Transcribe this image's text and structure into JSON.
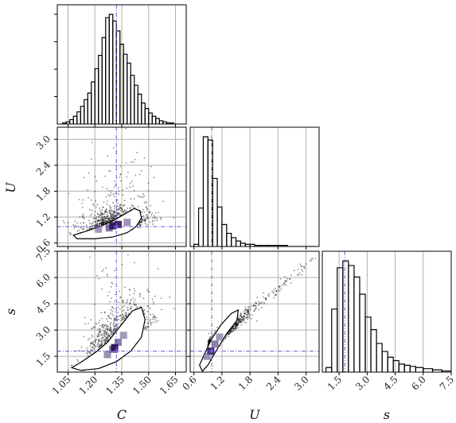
{
  "chart_data": {
    "type": "corner",
    "parameters": [
      "C",
      "U",
      "s"
    ],
    "axis_labels": {
      "C": "C",
      "U": "U",
      "s": "s"
    },
    "grid": true,
    "truth": {
      "C": 1.32,
      "U": 0.98,
      "s": 1.8
    },
    "truth_color": "#6a5acd",
    "ranges": {
      "C": [
        0.99,
        1.71
      ],
      "U": [
        0.52,
        3.28
      ],
      "s": [
        0.6,
        7.5
      ]
    },
    "ticks": {
      "C": [
        1.05,
        1.2,
        1.35,
        1.5,
        1.65
      ],
      "U": [
        0.6,
        1.2,
        1.8,
        2.4,
        3.0
      ],
      "s": [
        1.5,
        3.0,
        4.5,
        6.0,
        7.5
      ]
    },
    "tick_labels": {
      "C": [
        "1.05",
        "1.20",
        "1.35",
        "1.50",
        "1.65"
      ],
      "U": [
        "0.6",
        "1.2",
        "1.8",
        "2.4",
        "3.0"
      ],
      "s": [
        "1.5",
        "3.0",
        "4.5",
        "6.0",
        "7.5"
      ]
    },
    "histograms": {
      "C": {
        "edges": [
          1.02,
          1.04,
          1.06,
          1.08,
          1.1,
          1.12,
          1.14,
          1.16,
          1.18,
          1.2,
          1.22,
          1.24,
          1.26,
          1.28,
          1.3,
          1.32,
          1.34,
          1.36,
          1.38,
          1.4,
          1.42,
          1.44,
          1.46,
          1.48,
          1.5,
          1.52,
          1.54,
          1.56,
          1.58,
          1.6,
          1.62,
          1.64,
          1.66
        ],
        "counts": [
          1,
          2,
          4,
          7,
          11,
          16,
          22,
          28,
          38,
          50,
          62,
          78,
          96,
          99,
          93,
          84,
          72,
          63,
          55,
          44,
          35,
          27,
          19,
          14,
          10,
          7,
          5,
          3,
          2,
          1,
          1,
          0
        ]
      },
      "U": {
        "edges": [
          0.6,
          0.7,
          0.8,
          0.9,
          1.0,
          1.1,
          1.2,
          1.3,
          1.4,
          1.5,
          1.6,
          1.7,
          1.8,
          1.9,
          2.0,
          2.2,
          2.4,
          2.6,
          2.8,
          3.0,
          3.2
        ],
        "counts": [
          2,
          35,
          100,
          97,
          62,
          36,
          20,
          12,
          8,
          5,
          3,
          2,
          2,
          1,
          1,
          1,
          1,
          0,
          0,
          0
        ]
      },
      "s": {
        "edges": [
          0.8,
          1.1,
          1.4,
          1.7,
          2.0,
          2.3,
          2.6,
          2.9,
          3.2,
          3.5,
          3.8,
          4.1,
          4.4,
          4.7,
          5.0,
          5.3,
          5.6,
          6.0,
          6.5,
          7.0,
          7.5
        ],
        "counts": [
          4,
          55,
          91,
          97,
          93,
          83,
          68,
          48,
          37,
          25,
          18,
          13,
          10,
          7,
          6,
          5,
          4,
          3,
          2,
          1
        ]
      }
    },
    "contours": {
      "U_vs_C": [
        [
          1.08,
          0.78
        ],
        [
          1.14,
          0.86
        ],
        [
          1.22,
          0.97
        ],
        [
          1.3,
          1.11
        ],
        [
          1.37,
          1.28
        ],
        [
          1.42,
          1.4
        ],
        [
          1.45,
          1.35
        ],
        [
          1.46,
          1.18
        ],
        [
          1.43,
          0.98
        ],
        [
          1.38,
          0.84
        ],
        [
          1.3,
          0.74
        ],
        [
          1.2,
          0.7
        ],
        [
          1.1,
          0.7
        ]
      ],
      "s_vs_C": [
        [
          1.07,
          0.85
        ],
        [
          1.12,
          1.15
        ],
        [
          1.2,
          1.7
        ],
        [
          1.27,
          2.3
        ],
        [
          1.34,
          3.2
        ],
        [
          1.41,
          4.1
        ],
        [
          1.46,
          4.3
        ],
        [
          1.48,
          3.6
        ],
        [
          1.46,
          2.6
        ],
        [
          1.4,
          1.8
        ],
        [
          1.32,
          1.2
        ],
        [
          1.22,
          0.8
        ],
        [
          1.12,
          0.7
        ]
      ],
      "s_vs_U": [
        [
          0.72,
          1.0
        ],
        [
          0.82,
          1.6
        ],
        [
          0.98,
          2.5
        ],
        [
          1.18,
          3.3
        ],
        [
          1.4,
          3.95
        ],
        [
          1.55,
          4.15
        ],
        [
          1.52,
          3.55
        ],
        [
          1.3,
          2.8
        ],
        [
          1.05,
          1.7
        ],
        [
          0.9,
          1.0
        ],
        [
          0.78,
          0.65
        ]
      ]
    },
    "density_peaks": {
      "U_vs_C": [
        [
          1.28,
          0.95,
          0.8
        ],
        [
          1.33,
          1.03,
          0.9
        ],
        [
          1.22,
          0.92,
          0.45
        ],
        [
          1.38,
          1.08,
          0.5
        ],
        [
          1.3,
          1.0,
          1.0
        ]
      ],
      "s_vs_C": [
        [
          1.3,
          1.9,
          0.8
        ],
        [
          1.33,
          2.3,
          0.7
        ],
        [
          1.27,
          1.6,
          0.55
        ],
        [
          1.36,
          2.7,
          0.45
        ],
        [
          1.31,
          2.0,
          1.0
        ]
      ],
      "s_vs_U": [
        [
          0.96,
          1.8,
          0.9
        ],
        [
          1.05,
          2.2,
          0.7
        ],
        [
          1.15,
          2.6,
          0.45
        ],
        [
          0.88,
          1.5,
          0.55
        ]
      ]
    }
  }
}
